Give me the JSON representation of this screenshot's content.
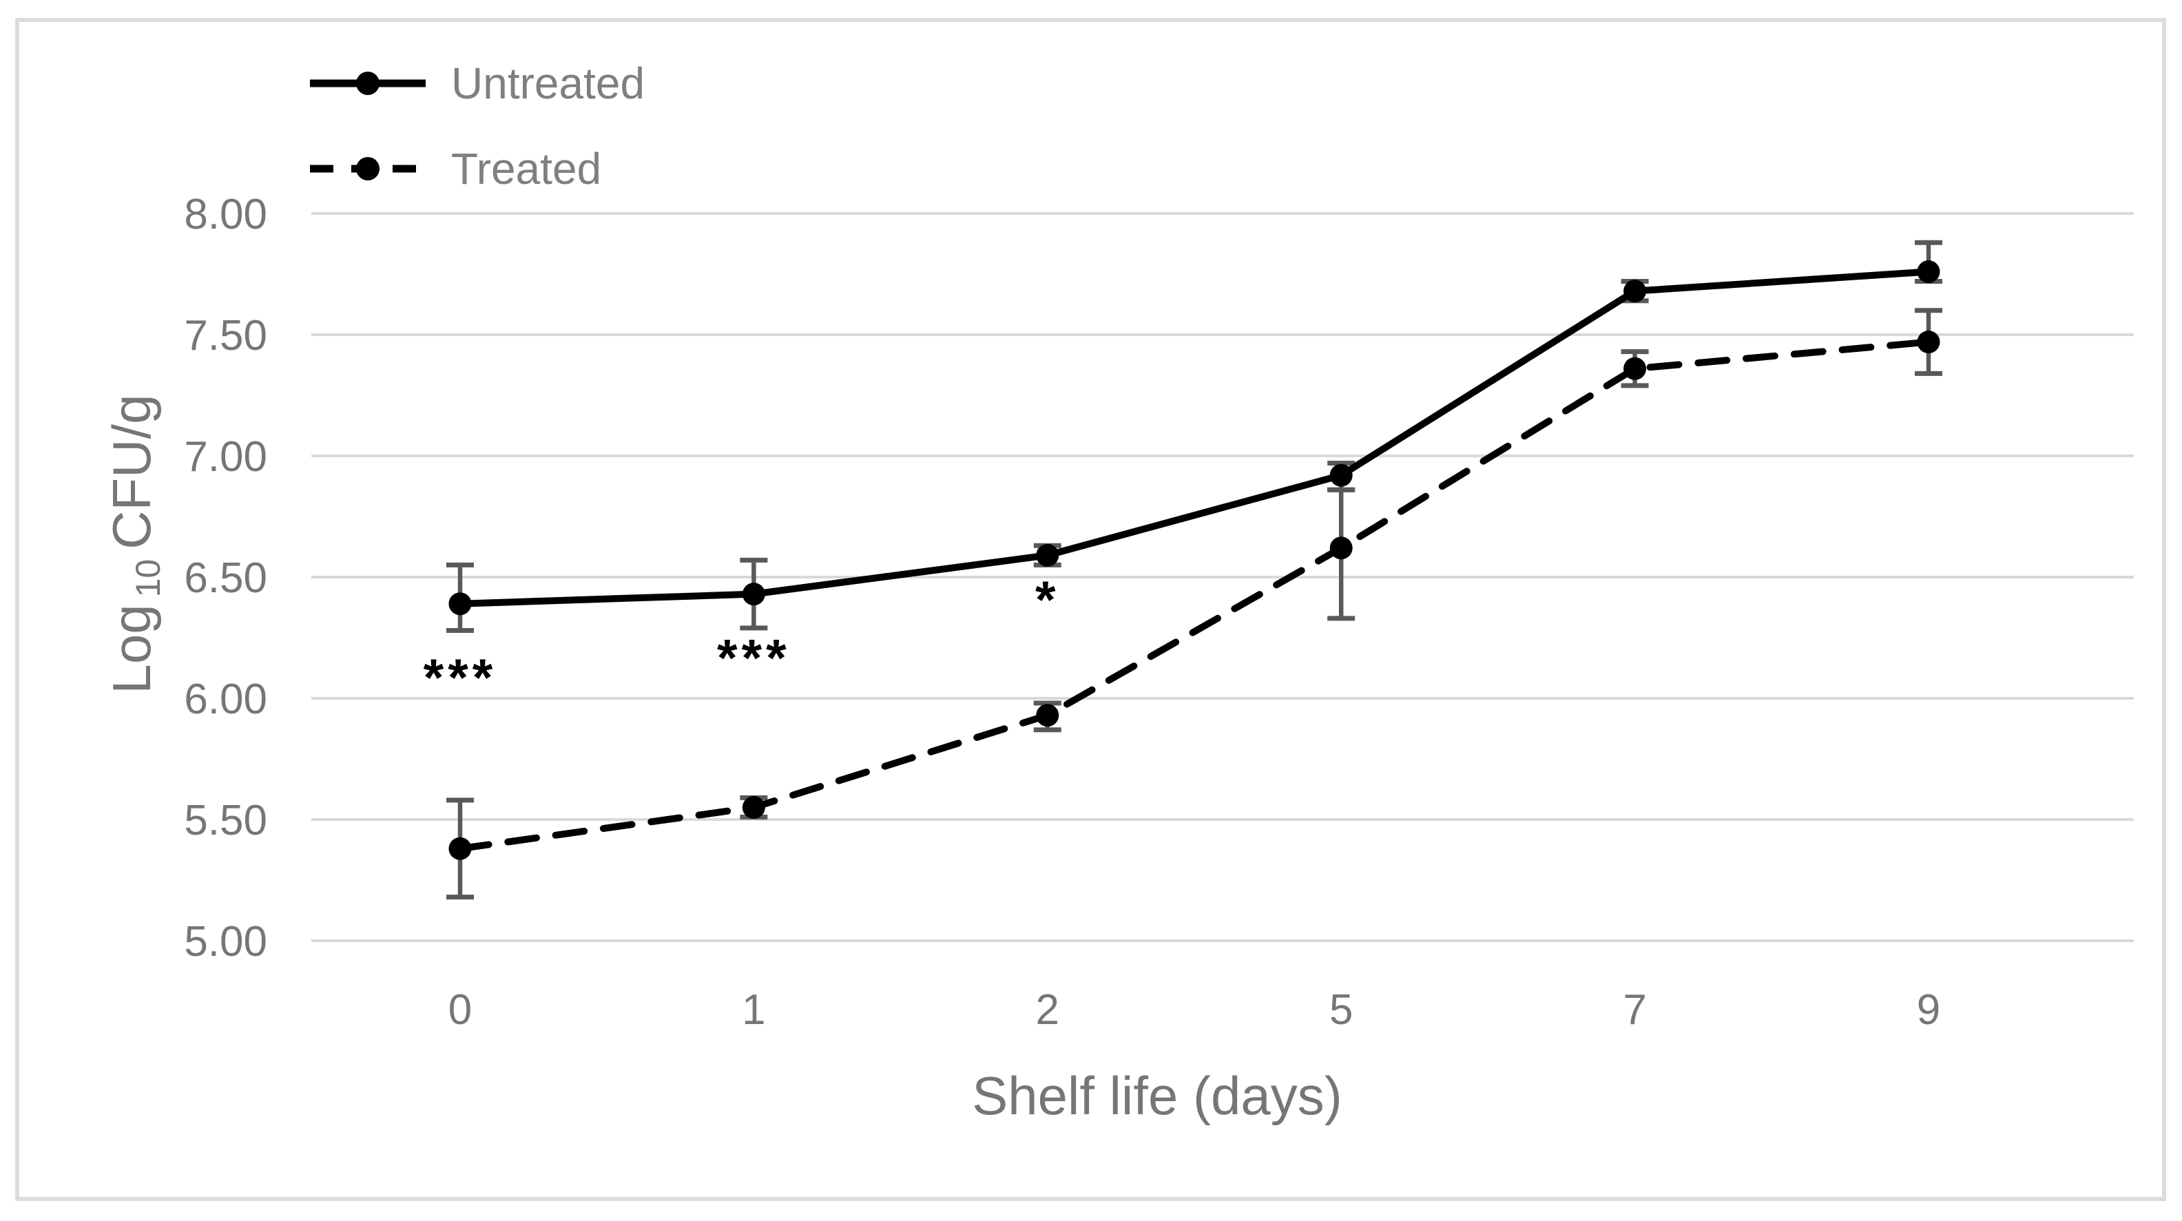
{
  "figure": {
    "background": "#ffffff",
    "border_color": "#dcdcdc"
  },
  "chart_data": {
    "type": "line",
    "title": "",
    "xlabel": "Shelf life (days)",
    "ylabel": "Log10 CFU/g",
    "ylabel_rich": {
      "prefix": "Log",
      "subscript": "10",
      "suffix": "CFU/g"
    },
    "x_categories": [
      "0",
      "1",
      "2",
      "5",
      "7",
      "9"
    ],
    "y_ticks": [
      "8.00",
      "7.50",
      "7.00",
      "6.50",
      "6.00",
      "5.50",
      "5.00"
    ],
    "y_tick_values": [
      8.0,
      7.5,
      7.0,
      6.5,
      6.0,
      5.5,
      5.0
    ],
    "ylim": [
      5.0,
      8.0
    ],
    "grid": "horizontal",
    "legend_position": "inside-top-left",
    "series": [
      {
        "name": "Untreated",
        "line_style": "solid",
        "marker": "circle",
        "color": "#000000",
        "values": [
          6.39,
          6.43,
          6.59,
          6.92,
          7.68,
          7.76
        ],
        "err_up": [
          0.16,
          0.14,
          0.04,
          0.05,
          0.04,
          0.12
        ],
        "err_down": [
          0.11,
          0.14,
          0.04,
          0.06,
          0.04,
          0.04
        ]
      },
      {
        "name": "Treated",
        "line_style": "dashed",
        "marker": "circle",
        "color": "#000000",
        "values": [
          5.38,
          5.55,
          5.93,
          6.62,
          7.36,
          7.47
        ],
        "err_up": [
          0.2,
          0.04,
          0.05,
          0.24,
          0.07,
          0.13
        ],
        "err_down": [
          0.2,
          0.04,
          0.06,
          0.29,
          0.07,
          0.13
        ]
      }
    ],
    "annotations": [
      {
        "text": "***",
        "series": "Untreated",
        "category_index": 0,
        "y_value": 6.12
      },
      {
        "text": "***",
        "series": "Untreated",
        "category_index": 1,
        "y_value": 6.2
      },
      {
        "text": "*",
        "series": "Untreated",
        "category_index": 2,
        "y_value": 6.44
      }
    ],
    "colors": {
      "series_line": "#000000",
      "error_bar": "#595959",
      "gridline": "#d9d9d9",
      "axis_text": "#767676",
      "legend_text": "#7f7f7f",
      "annotation": "#000000"
    }
  }
}
